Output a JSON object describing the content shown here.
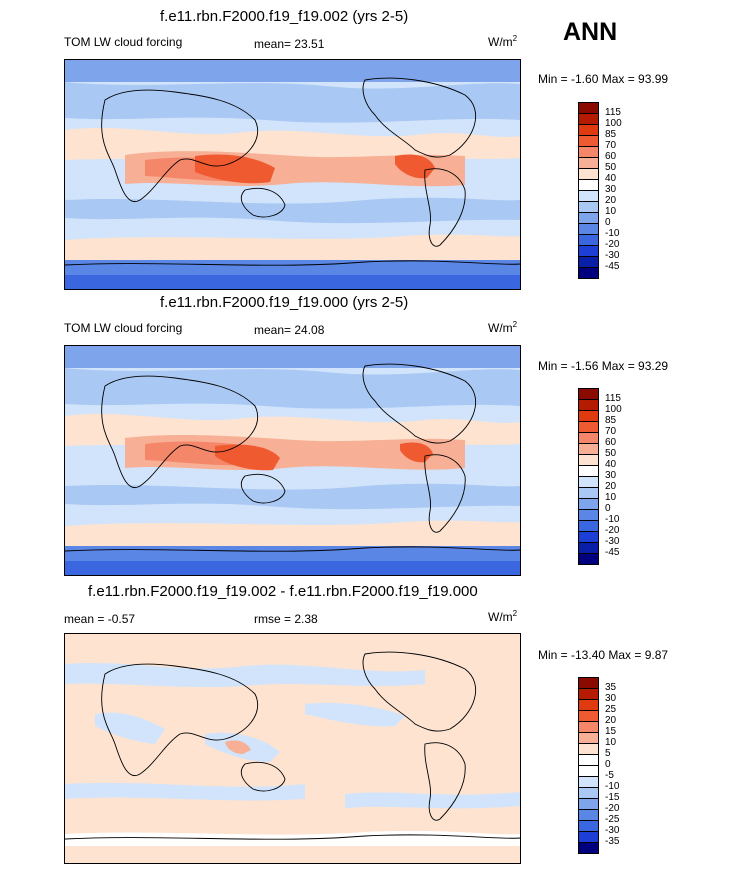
{
  "season": "ANN",
  "panels": [
    {
      "title": "f.e11.rbn.F2000.f19_f19.002 (yrs 2-5)",
      "left_label": "TOM LW cloud forcing",
      "center_label": "mean=  23.51",
      "units_base": "W/m",
      "units_exp": "2",
      "minmax": "Min =  -1.60 Max =  93.99",
      "levels": [
        "115",
        "100",
        "85",
        "70",
        "60",
        "50",
        "40",
        "30",
        "20",
        "10",
        "0",
        "-10",
        "-20",
        "-30",
        "-45"
      ],
      "colors": [
        "#8b0a00",
        "#b41b00",
        "#e03a10",
        "#f05a30",
        "#f4876a",
        "#f7b095",
        "#fde3d0",
        "#ffffff",
        "#d2e4fb",
        "#a9c8f3",
        "#7ea4ec",
        "#5a86e6",
        "#3a66e0",
        "#1e3fd6",
        "#0a1fa8",
        "#00007f"
      ]
    },
    {
      "title": "f.e11.rbn.F2000.f19_f19.000 (yrs 2-5)",
      "left_label": "TOM LW cloud forcing",
      "center_label": "mean=  24.08",
      "units_base": "W/m",
      "units_exp": "2",
      "minmax": "Min =  -1.56 Max =  93.29",
      "levels": [
        "115",
        "100",
        "85",
        "70",
        "60",
        "50",
        "40",
        "30",
        "20",
        "10",
        "0",
        "-10",
        "-20",
        "-30",
        "-45"
      ],
      "colors": [
        "#8b0a00",
        "#b41b00",
        "#e03a10",
        "#f05a30",
        "#f4876a",
        "#f7b095",
        "#fde3d0",
        "#ffffff",
        "#d2e4fb",
        "#a9c8f3",
        "#7ea4ec",
        "#5a86e6",
        "#3a66e0",
        "#1e3fd6",
        "#0a1fa8",
        "#00007f"
      ]
    },
    {
      "title": "f.e11.rbn.F2000.f19_f19.002 - f.e11.rbn.F2000.f19_f19.000",
      "left_label": "mean =  -0.57",
      "center_label": "rmse =   2.38",
      "units_base": "W/m",
      "units_exp": "2",
      "minmax": "Min = -13.40 Max =   9.87",
      "levels": [
        "35",
        "30",
        "25",
        "20",
        "15",
        "10",
        "5",
        "0",
        "-5",
        "-10",
        "-15",
        "-20",
        "-25",
        "-30",
        "-35"
      ],
      "colors": [
        "#8b0a00",
        "#b41b00",
        "#e03a10",
        "#f05a30",
        "#f4876a",
        "#f7b095",
        "#fde3d0",
        "#ffffff",
        "#ffffff",
        "#d2e4fb",
        "#a9c8f3",
        "#7ea4ec",
        "#5a86e6",
        "#3a66e0",
        "#1e3fd6",
        "#00007f"
      ]
    }
  ],
  "chart_data": [
    {
      "type": "heatmap",
      "title": "f.e11.rbn.F2000.f19_f19.002 (yrs 2-5)",
      "variable": "TOM LW cloud forcing",
      "units": "W/m2",
      "mean": 23.51,
      "min": -1.6,
      "max": 93.99,
      "contour_levels": [
        -45,
        -30,
        -20,
        -10,
        0,
        10,
        20,
        30,
        40,
        50,
        60,
        70,
        85,
        100,
        115
      ]
    },
    {
      "type": "heatmap",
      "title": "f.e11.rbn.F2000.f19_f19.000 (yrs 2-5)",
      "variable": "TOM LW cloud forcing",
      "units": "W/m2",
      "mean": 24.08,
      "min": -1.56,
      "max": 93.29,
      "contour_levels": [
        -45,
        -30,
        -20,
        -10,
        0,
        10,
        20,
        30,
        40,
        50,
        60,
        70,
        85,
        100,
        115
      ]
    },
    {
      "type": "heatmap",
      "title": "f.e11.rbn.F2000.f19_f19.002 - f.e11.rbn.F2000.f19_f19.000",
      "units": "W/m2",
      "mean": -0.57,
      "rmse": 2.38,
      "min": -13.4,
      "max": 9.87,
      "contour_levels": [
        -35,
        -30,
        -25,
        -20,
        -15,
        -10,
        -5,
        0,
        5,
        10,
        15,
        20,
        25,
        30,
        35
      ]
    }
  ]
}
